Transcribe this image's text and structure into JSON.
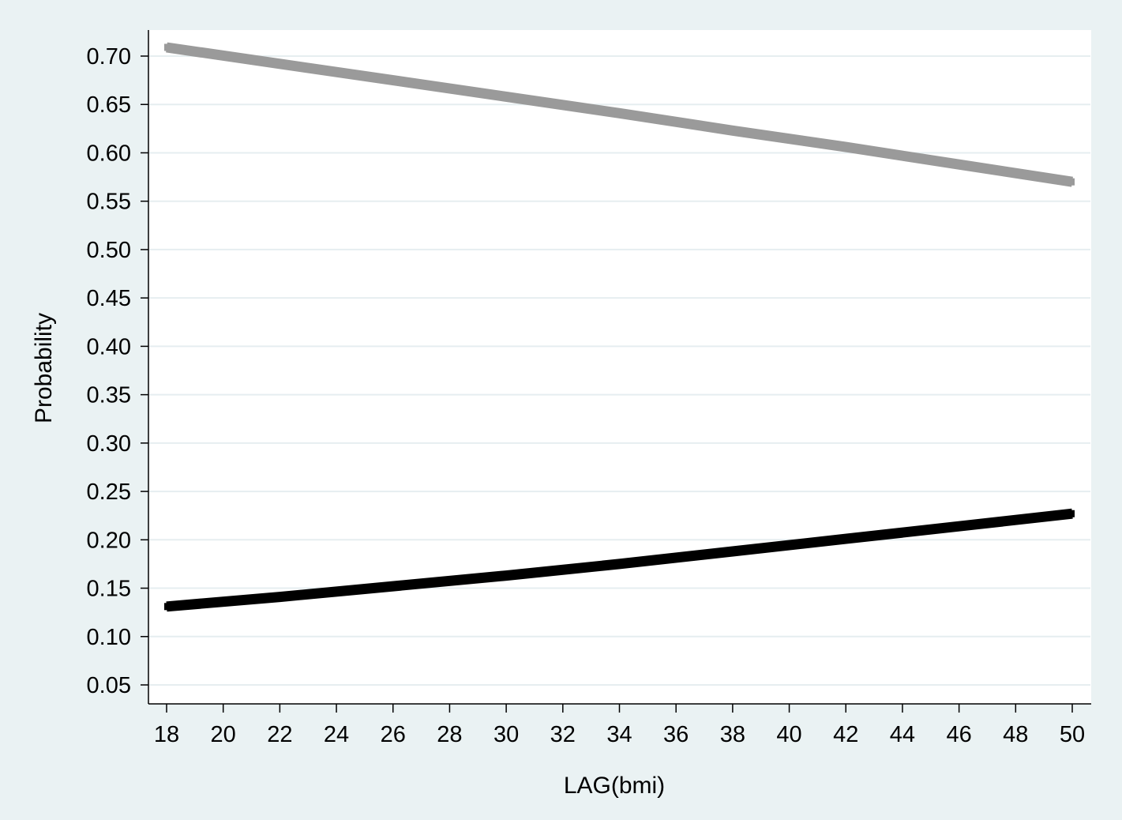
{
  "chart_data": {
    "type": "line",
    "xlabel": "LAG(bmi)",
    "ylabel": "Probability",
    "xlim": [
      18,
      50
    ],
    "ylim": [
      0.05,
      0.7
    ],
    "x_ticks": [
      18,
      20,
      22,
      24,
      26,
      28,
      30,
      32,
      34,
      36,
      38,
      40,
      42,
      44,
      46,
      48,
      50
    ],
    "y_ticks": [
      "0.05",
      "0.10",
      "0.15",
      "0.20",
      "0.25",
      "0.30",
      "0.35",
      "0.40",
      "0.45",
      "0.50",
      "0.55",
      "0.60",
      "0.65",
      "0.70"
    ],
    "grid": true,
    "legend": "none",
    "series": [
      {
        "color": "#9a9a9a",
        "x": [
          18,
          22,
          26,
          30,
          34,
          38,
          42,
          46,
          50
        ],
        "y": [
          0.709,
          0.692,
          0.675,
          0.658,
          0.641,
          0.623,
          0.606,
          0.588,
          0.57
        ]
      },
      {
        "color": "#000000",
        "x": [
          18,
          22,
          26,
          30,
          34,
          38,
          42,
          46,
          50
        ],
        "y": [
          0.131,
          0.141,
          0.152,
          0.163,
          0.175,
          0.188,
          0.201,
          0.214,
          0.227
        ]
      }
    ]
  },
  "colors": {
    "background": "#eaf2f3",
    "plot_area": "#ffffff",
    "gridline": "#e6eef0"
  }
}
